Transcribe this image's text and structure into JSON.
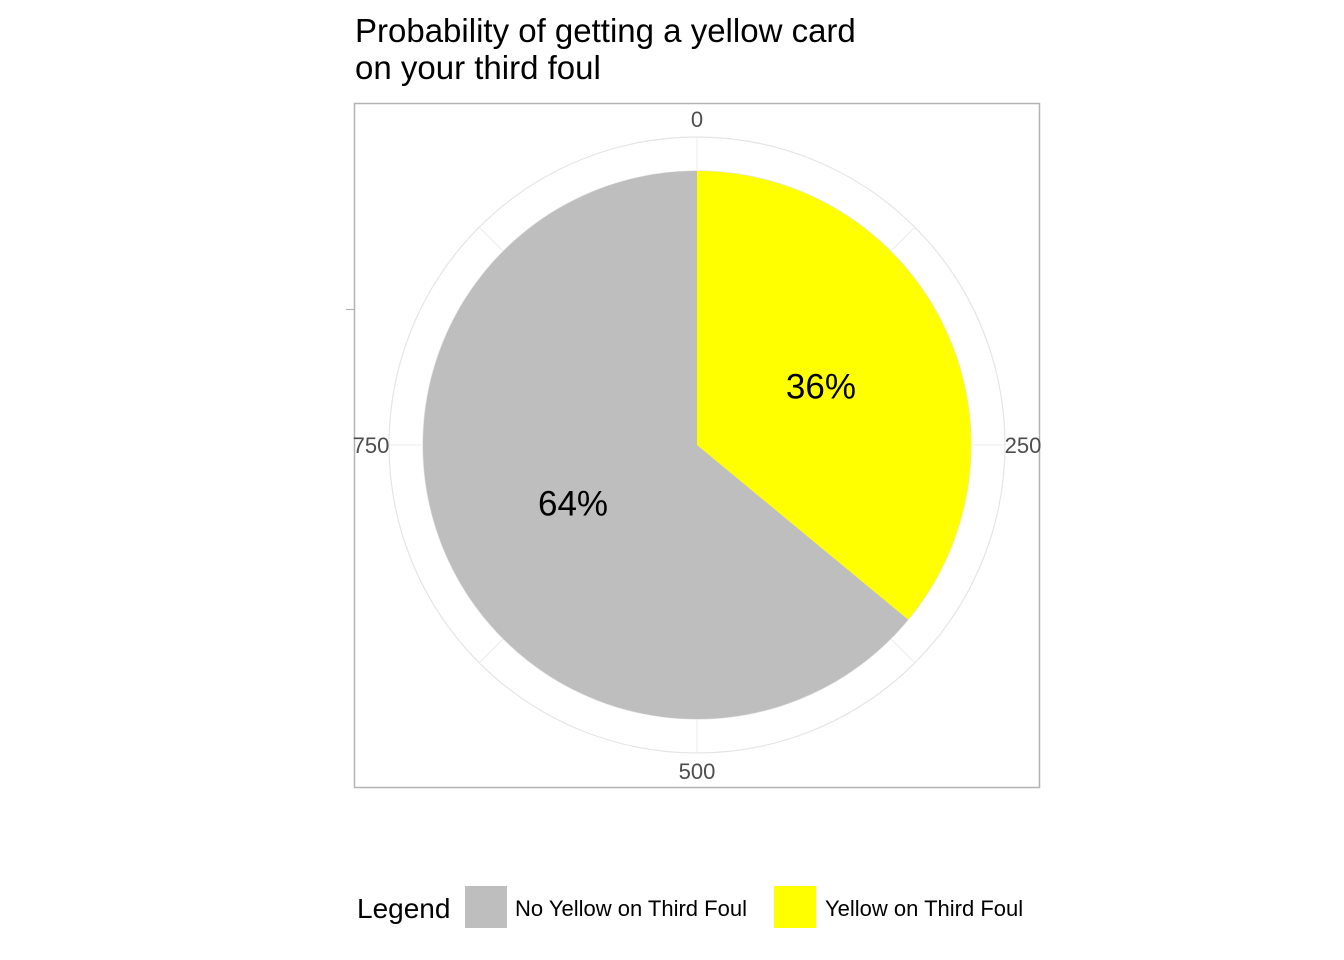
{
  "chart_data": {
    "type": "pie",
    "title": [
      "Probability of getting a yellow card",
      "on your third foul"
    ],
    "coord": "polar",
    "total": 1000,
    "theta_ticks": [
      "0",
      "250",
      "500",
      "750"
    ],
    "slices": [
      {
        "name": "Yellow on Third Foul",
        "value": 360,
        "label": "36%",
        "color": "#FFFF00"
      },
      {
        "name": "No Yellow on Third Foul",
        "value": 640,
        "label": "64%",
        "color": "#BEBEBE"
      }
    ],
    "legend": {
      "title": "Legend",
      "position": "bottom",
      "entries": [
        {
          "name": "No Yellow on Third Foul",
          "color": "#BEBEBE"
        },
        {
          "name": "Yellow on Third Foul",
          "color": "#FFFF00"
        }
      ]
    },
    "grid": true
  }
}
